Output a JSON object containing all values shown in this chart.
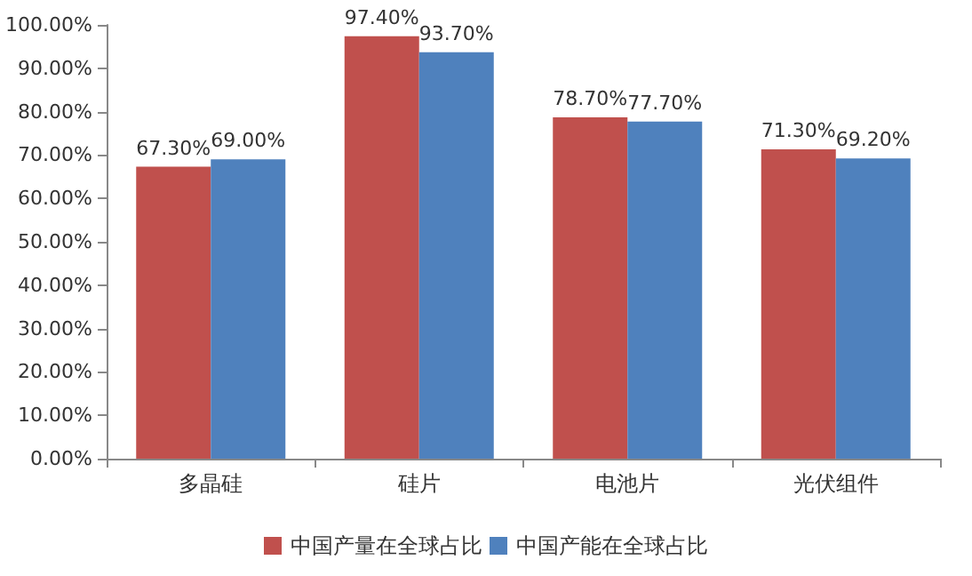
{
  "chart_data": {
    "type": "bar",
    "categories": [
      "多晶硅",
      "硅片",
      "电池片",
      "光伏组件"
    ],
    "series": [
      {
        "name": "中国产量在全球占比",
        "color": "#c0504d",
        "values": [
          67.3,
          97.4,
          78.7,
          71.3
        ],
        "value_labels": [
          "67.30%",
          "97.40%",
          "78.70%",
          "71.30%"
        ]
      },
      {
        "name": "中国产能在全球占比",
        "color": "#4f81bd",
        "values": [
          69.0,
          93.7,
          77.7,
          69.2
        ],
        "value_labels": [
          "69.00%",
          "93.70%",
          "77.70%",
          "69.20%"
        ]
      }
    ],
    "ylim": [
      0,
      100
    ],
    "yticks": [
      {
        "value": 0,
        "label": "0.00%"
      },
      {
        "value": 10,
        "label": "10.00%"
      },
      {
        "value": 20,
        "label": "20.00%"
      },
      {
        "value": 30,
        "label": "30.00%"
      },
      {
        "value": 40,
        "label": "40.00%"
      },
      {
        "value": 50,
        "label": "50.00%"
      },
      {
        "value": 60,
        "label": "60.00%"
      },
      {
        "value": 70,
        "label": "70.00%"
      },
      {
        "value": 80,
        "label": "80.00%"
      },
      {
        "value": 90,
        "label": "90.00%"
      },
      {
        "value": 100,
        "label": "100.00%"
      }
    ],
    "grid": false,
    "legend": "bottom"
  }
}
